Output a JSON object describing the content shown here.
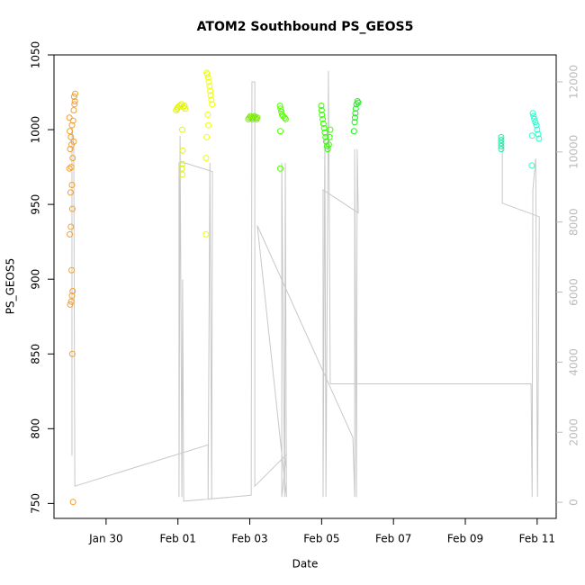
{
  "chart_data": {
    "type": "scatter",
    "title": "ATOM2 Southbound PS_GEOS5",
    "xlabel": "Date",
    "ylabel": "PS_GEOS5",
    "xlim": [
      28.55,
      42.53
    ],
    "ylim": [
      740,
      1050
    ],
    "y2lim": [
      -460,
      12770
    ],
    "xticks": [
      {
        "value": 30,
        "label": "Jan 30"
      },
      {
        "value": 32,
        "label": "Feb 01"
      },
      {
        "value": 34,
        "label": "Feb 03"
      },
      {
        "value": 36,
        "label": "Feb 05"
      },
      {
        "value": 38,
        "label": "Feb 07"
      },
      {
        "value": 40,
        "label": "Feb 09"
      },
      {
        "value": 42,
        "label": "Feb 11"
      }
    ],
    "yticks": [
      750,
      800,
      850,
      900,
      950,
      1000,
      1050
    ],
    "y2ticks": [
      0,
      2000,
      4000,
      6000,
      8000,
      10000,
      12000
    ],
    "y2color": "#bbbbbb",
    "series": [
      {
        "type": "line",
        "axis": "y2",
        "color": "#c8c8c8",
        "x": [
          29.05,
          29.05,
          29.1,
          29.13,
          32.84,
          32.84,
          32.89,
          32.94,
          32.96,
          32.18,
          32.03,
          32.03,
          32.06,
          32.11,
          32.13,
          32.16,
          34.04,
          34.06,
          34.14,
          34.14,
          35.02,
          34.89,
          34.89,
          34.97,
          34.99,
          35.02,
          34.21,
          36.87,
          36.92,
          36.92,
          36.97,
          36.99,
          37.02,
          36.04,
          36.04,
          36.09,
          36.12,
          36.19,
          36.24,
          41.83,
          41.86,
          41.88,
          41.96,
          42.01,
          42.06,
          41.03,
          41.03
        ],
        "values": [
          1330,
          10720,
          10200,
          460,
          1640,
          80,
          9690,
          80,
          9440,
          9690,
          9690,
          150,
          10460,
          150,
          6360,
          30,
          200,
          12000,
          12000,
          460,
          1360,
          150,
          9690,
          150,
          9690,
          150,
          7900,
          1850,
          150,
          10080,
          150,
          10080,
          8260,
          8920,
          150,
          10460,
          150,
          12310,
          3380,
          3380,
          150,
          8920,
          9820,
          150,
          8150,
          8540,
          10460
        ]
      },
      {
        "color": "#f5a030",
        "x": [
          29.08,
          29.06,
          29.0,
          29.03,
          29.05,
          29.07,
          29.04,
          28.99,
          29.02,
          29.06,
          29.01,
          29.05,
          28.98,
          29.03,
          29.07,
          29.0,
          29.04,
          29.1,
          29.02,
          28.99,
          29.05,
          29.08,
          28.98,
          29.1,
          29.12,
          29.13,
          29.11,
          29.14
        ],
        "values": [
          751,
          850,
          883,
          885,
          889,
          892,
          906,
          930,
          935,
          947,
          958,
          963,
          974,
          975,
          981,
          987,
          990,
          992,
          995,
          999,
          1003,
          1006,
          1008,
          1013,
          1017,
          1019,
          1022,
          1024
        ]
      },
      {
        "color": "#e2f500",
        "x": [
          31.95,
          31.98,
          32.0,
          32.05,
          32.1,
          32.15,
          32.2,
          32.18,
          32.12,
          32.13,
          32.12,
          32.11,
          32.12
        ],
        "values": [
          1013,
          1014,
          1015,
          1016,
          1017,
          1015,
          1014,
          1016,
          1000,
          986,
          977,
          974,
          970
        ]
      },
      {
        "color": "#eeff00",
        "x": [
          32.78,
          32.78,
          32.8,
          32.85,
          32.83,
          32.95,
          32.93,
          32.91,
          32.9,
          32.88,
          32.86,
          32.84,
          32.82,
          32.8
        ],
        "values": [
          930,
          981,
          995,
          1003,
          1010,
          1017,
          1020,
          1023,
          1026,
          1029,
          1032,
          1035,
          1037,
          1038
        ]
      },
      {
        "color": "#77ee00",
        "x": [
          33.96,
          33.99,
          34.02,
          34.05,
          34.08,
          34.1,
          34.13,
          34.16,
          34.19,
          34.21
        ],
        "values": [
          1007,
          1008,
          1009,
          1008,
          1007,
          1008,
          1009,
          1008,
          1007,
          1008
        ]
      },
      {
        "color": "#55ff00",
        "x": [
          34.85,
          34.85,
          35.0,
          34.97,
          34.93,
          34.9,
          34.88,
          34.86,
          34.84
        ],
        "values": [
          974,
          999,
          1007,
          1008,
          1009,
          1010,
          1012,
          1014,
          1016
        ]
      },
      {
        "color": "#33ff00",
        "x": [
          35.99,
          36.0,
          36.01,
          36.03,
          36.05,
          36.07,
          36.09,
          36.11,
          36.13,
          36.15,
          36.17,
          36.2,
          36.22,
          36.24
        ],
        "values": [
          1016,
          1013,
          1010,
          1007,
          1004,
          1001,
          998,
          995,
          992,
          989,
          987,
          990,
          995,
          1000
        ]
      },
      {
        "color": "#22ee22",
        "x": [
          36.9,
          36.92,
          36.93,
          36.94,
          36.95,
          36.97,
          37.0,
          37.02
        ],
        "values": [
          999,
          1005,
          1008,
          1011,
          1014,
          1017,
          1019,
          1018
        ]
      },
      {
        "color": "#22eeaa",
        "x": [
          41.0,
          41.0,
          41.0,
          41.0,
          41.0
        ],
        "values": [
          987,
          989,
          991,
          993,
          995
        ]
      },
      {
        "color": "#22ffcc",
        "x": [
          41.85,
          41.86,
          41.88,
          41.9,
          41.92,
          41.95,
          41.98,
          42.0,
          42.03,
          42.05
        ],
        "values": [
          976,
          996,
          1011,
          1009,
          1007,
          1005,
          1003,
          1000,
          997,
          994
        ]
      }
    ]
  }
}
